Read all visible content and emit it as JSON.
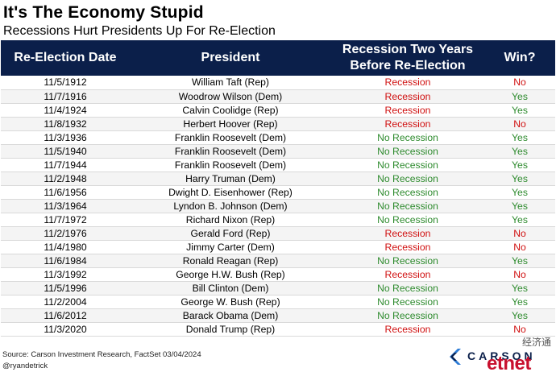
{
  "title": "It's The Economy Stupid",
  "subtitle": "Recessions Hurt Presidents Up For Re-Election",
  "source": "Source: Carson Investment Research, FactSet 03/04/2024",
  "handle": "@ryandetrick",
  "logo": {
    "brand": "CARSON",
    "watermark_cn": "经济通",
    "watermark": "etnet"
  },
  "colors": {
    "header_bg": "#0b1f4a",
    "recession": "#d01010",
    "no_recession": "#2e8b2e"
  },
  "chart_data": {
    "type": "table",
    "columns": [
      "Re-Election Date",
      "President",
      "Recession Two Years Before Re-Election",
      "Win?"
    ],
    "columns_display": [
      "Re-Election Date",
      "President",
      "Recession Two Years\nBefore Re-Election",
      "Win?"
    ],
    "rows": [
      [
        "11/5/1912",
        "William Taft (Rep)",
        "Recession",
        "No"
      ],
      [
        "11/7/1916",
        "Woodrow Wilson (Dem)",
        "Recession",
        "Yes"
      ],
      [
        "11/4/1924",
        "Calvin Coolidge (Rep)",
        "Recession",
        "Yes"
      ],
      [
        "11/8/1932",
        "Herbert Hoover (Rep)",
        "Recession",
        "No"
      ],
      [
        "11/3/1936",
        "Franklin Roosevelt (Dem)",
        "No Recession",
        "Yes"
      ],
      [
        "11/5/1940",
        "Franklin Roosevelt (Dem)",
        "No Recession",
        "Yes"
      ],
      [
        "11/7/1944",
        "Franklin Roosevelt (Dem)",
        "No Recession",
        "Yes"
      ],
      [
        "11/2/1948",
        "Harry Truman (Dem)",
        "No Recession",
        "Yes"
      ],
      [
        "11/6/1956",
        "Dwight D. Eisenhower (Rep)",
        "No Recession",
        "Yes"
      ],
      [
        "11/3/1964",
        "Lyndon B. Johnson (Dem)",
        "No Recession",
        "Yes"
      ],
      [
        "11/7/1972",
        "Richard Nixon (Rep)",
        "No Recession",
        "Yes"
      ],
      [
        "11/2/1976",
        "Gerald Ford (Rep)",
        "Recession",
        "No"
      ],
      [
        "11/4/1980",
        "Jimmy Carter (Dem)",
        "Recession",
        "No"
      ],
      [
        "11/6/1984",
        "Ronald Reagan (Rep)",
        "No Recession",
        "Yes"
      ],
      [
        "11/3/1992",
        "George H.W. Bush (Rep)",
        "Recession",
        "No"
      ],
      [
        "11/5/1996",
        "Bill Clinton (Dem)",
        "No Recession",
        "Yes"
      ],
      [
        "11/2/2004",
        "George W. Bush (Rep)",
        "No Recession",
        "Yes"
      ],
      [
        "11/6/2012",
        "Barack Obama (Dem)",
        "No Recession",
        "Yes"
      ],
      [
        "11/3/2020",
        "Donald Trump (Rep)",
        "Recession",
        "No"
      ]
    ]
  }
}
